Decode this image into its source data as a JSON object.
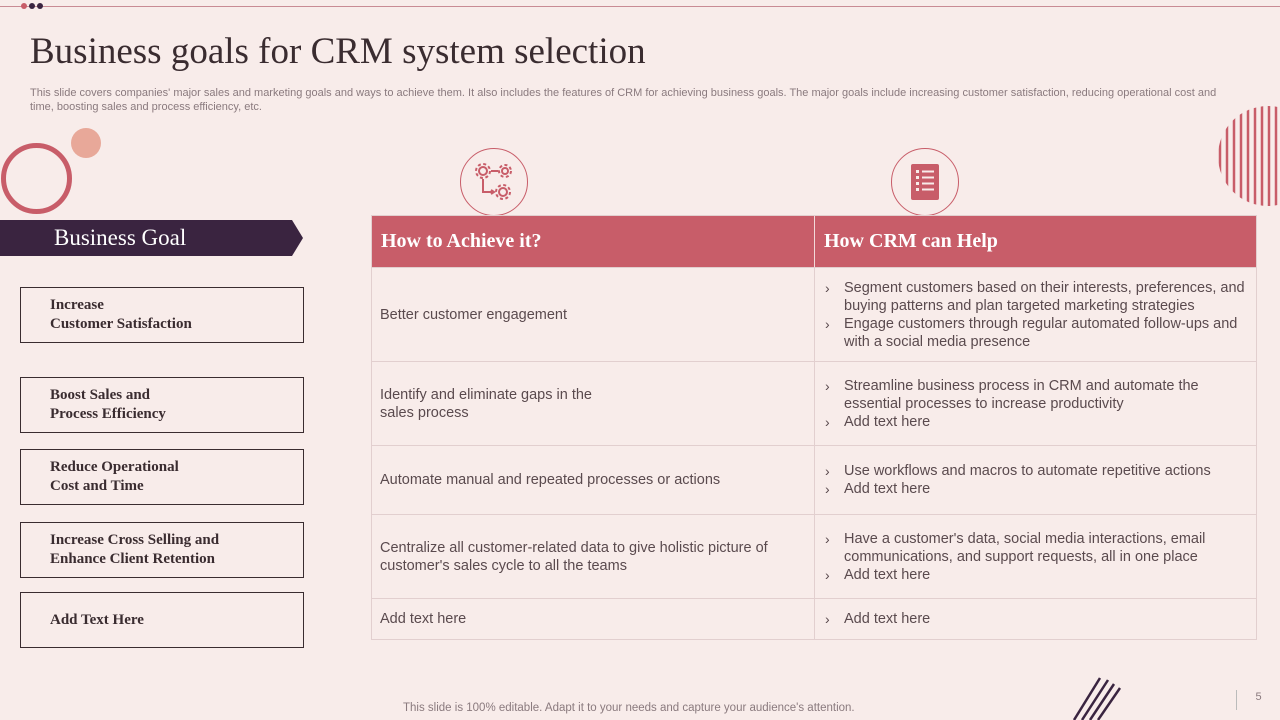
{
  "slide": {
    "title": "Business goals for CRM system selection",
    "subtitle": "This slide covers companies' major sales and marketing goals and ways to achieve them. It also includes the features of CRM for achieving business goals. The major goals include increasing customer satisfaction, reducing operational cost and time, boosting sales and process efficiency, etc.",
    "footer_note": "This slide is 100% editable. Adapt it to your needs and capture your audience's attention.",
    "page_number": "5"
  },
  "goals": {
    "header": "Business Goal",
    "items": [
      "Increase\nCustomer Satisfaction",
      "Boost Sales and\nProcess Efficiency",
      "Reduce Operational\nCost and Time",
      "Increase Cross Selling and\nEnhance Client Retention",
      "Add Text Here"
    ]
  },
  "icons": {
    "achieve": "process-gears-icon",
    "crm": "checklist-document-icon"
  },
  "table": {
    "headers": [
      "How to Achieve it?",
      "How CRM can Help"
    ],
    "rows": [
      {
        "achieve": "Better customer engagement",
        "help": [
          "Segment customers based on their interests, preferences, and buying patterns and plan targeted marketing strategies",
          "Engage customers through regular automated follow-ups and with a social media presence"
        ]
      },
      {
        "achieve": "Identify and eliminate gaps in the sales process",
        "help": [
          "Streamline business process in CRM and automate the essential processes to increase productivity",
          "Add text here"
        ]
      },
      {
        "achieve": "Automate manual and repeated processes or actions",
        "help": [
          "Use workflows and macros to automate repetitive actions",
          "Add text here"
        ]
      },
      {
        "achieve": "Centralize all customer-related data to give holistic picture of customer's sales cycle to all the teams",
        "help": [
          "Have a customer's data, social media interactions, email communications, and support requests, all in one place",
          "Add text here"
        ]
      },
      {
        "achieve": "Add text here",
        "help": [
          "Add text here"
        ]
      }
    ]
  },
  "bullet_glyph": "›",
  "colors": {
    "background": "#f8ecea",
    "accent": "#c85d69",
    "dark": "#3a2440",
    "peach": "#e8a899"
  }
}
